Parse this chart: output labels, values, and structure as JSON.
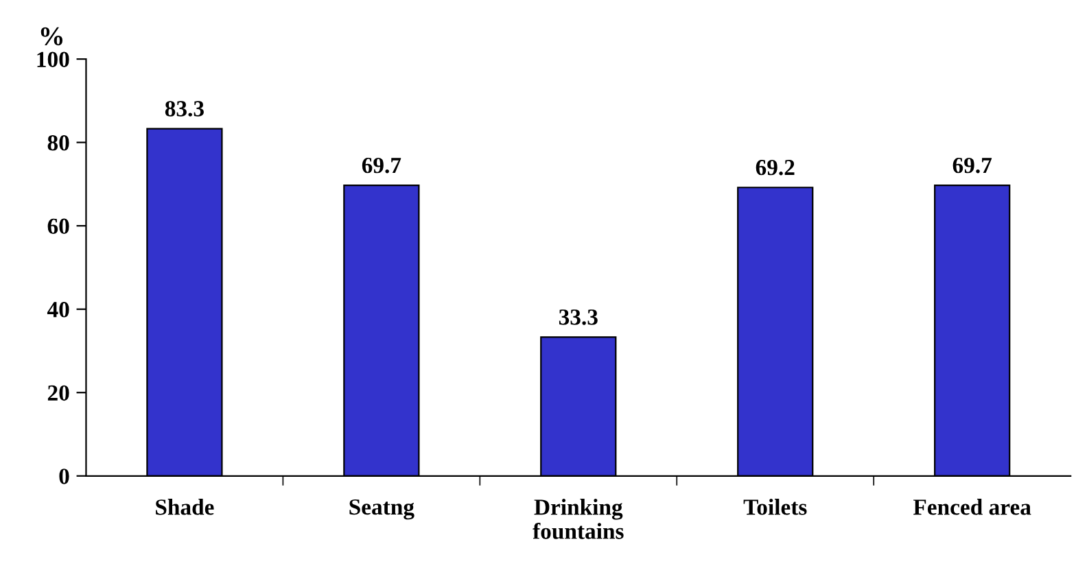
{
  "chart_data": {
    "type": "bar",
    "ylabel": "%",
    "categories": [
      "Shade",
      "Seatng",
      "Drinking\nfountains",
      "Toilets",
      "Fenced area"
    ],
    "values": [
      83.3,
      69.7,
      33.3,
      69.2,
      69.7
    ],
    "color": "#3333cc",
    "ylim": [
      0,
      100
    ],
    "yticks": [
      0,
      20,
      40,
      60,
      80,
      100
    ],
    "grid": false,
    "data_labels": true
  }
}
